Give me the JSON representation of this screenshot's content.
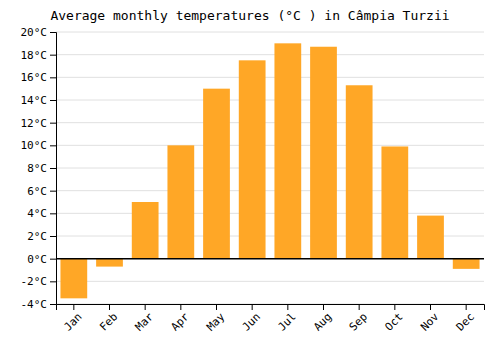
{
  "chart_data": {
    "type": "bar",
    "title": "Average monthly temperatures (°C ) in Câmpia Turzii",
    "categories": [
      "Jan",
      "Feb",
      "Mar",
      "Apr",
      "May",
      "Jun",
      "Jul",
      "Aug",
      "Sep",
      "Oct",
      "Nov",
      "Dec"
    ],
    "values": [
      -3.5,
      -0.7,
      5.0,
      10.0,
      15.0,
      17.5,
      19.0,
      18.7,
      15.3,
      9.9,
      3.8,
      -0.9
    ],
    "color": "#FFA726",
    "ylim": [
      -4,
      20
    ],
    "yticks": [
      {
        "value": -4,
        "label": "-4°C"
      },
      {
        "value": -2,
        "label": "-2°C"
      },
      {
        "value": 0,
        "label": "0°C"
      },
      {
        "value": 2,
        "label": "2°C"
      },
      {
        "value": 4,
        "label": "4°C"
      },
      {
        "value": 6,
        "label": "6°C"
      },
      {
        "value": 8,
        "label": "8°C"
      },
      {
        "value": 10,
        "label": "10°C"
      },
      {
        "value": 12,
        "label": "12°C"
      },
      {
        "value": 14,
        "label": "14°C"
      },
      {
        "value": 16,
        "label": "16°C"
      },
      {
        "value": 18,
        "label": "18°C"
      },
      {
        "value": 20,
        "label": "20°C"
      }
    ],
    "grid": true
  }
}
